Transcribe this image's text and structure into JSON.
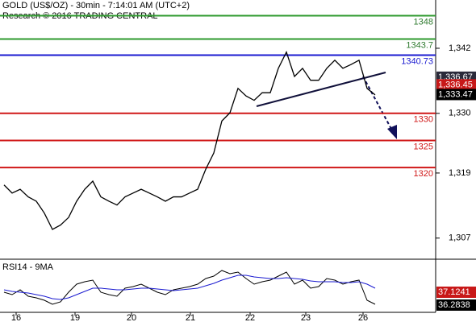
{
  "chart_data": {
    "type": "line",
    "title": "GOLD (US$/OZ) - 30min - 7:14:01 AM (UTC+2)",
    "subtitle": "Research © 2016 TRADING CENTRAL",
    "color": "#000000",
    "x": [
      0,
      1,
      2,
      3,
      4,
      5,
      6,
      7,
      8,
      9,
      10,
      11,
      12,
      13,
      14,
      15,
      16,
      17,
      18,
      19,
      20,
      21,
      22,
      23,
      24,
      25,
      26,
      27,
      28,
      29,
      30,
      31,
      32,
      33,
      34,
      35,
      36,
      37,
      38,
      39,
      40,
      41,
      42,
      43,
      44,
      45,
      46
    ],
    "values": [
      1316.8,
      1315.3,
      1316.0,
      1314.6,
      1313.8,
      1311.6,
      1308.6,
      1309.4,
      1310.8,
      1313.8,
      1316.0,
      1317.5,
      1314.6,
      1313.8,
      1313.1,
      1314.6,
      1315.3,
      1316.0,
      1315.3,
      1314.6,
      1313.8,
      1314.6,
      1314.6,
      1315.3,
      1316.0,
      1319.7,
      1322.7,
      1328.6,
      1330.1,
      1334.6,
      1333.2,
      1332.4,
      1333.8,
      1333.8,
      1338.3,
      1341.3,
      1336.8,
      1338.3,
      1336.1,
      1336.1,
      1338.3,
      1339.8,
      1338.3,
      1339.0,
      1339.8,
      1334.6,
      1333.4
    ],
    "xlim": [
      -0.5,
      53.5
    ],
    "xticks": [
      {
        "value": 1.5,
        "label": "16"
      },
      {
        "value": 8.8,
        "label": "19"
      },
      {
        "value": 15.8,
        "label": "20"
      },
      {
        "value": 23.1,
        "label": "21"
      },
      {
        "value": 30.5,
        "label": "22"
      },
      {
        "value": 37.4,
        "label": "23"
      },
      {
        "value": 44.5,
        "label": "26"
      }
    ],
    "ylim": [
      1303.7,
      1350.9
    ],
    "yticks": [
      {
        "value": 1342,
        "label": "1,342"
      },
      {
        "value": 1330,
        "label": "1,330"
      },
      {
        "value": 1319,
        "label": "1,319"
      },
      {
        "value": 1307,
        "label": "1,307"
      }
    ],
    "levels": [
      {
        "value": 1348,
        "color": "#2e9a2e"
      },
      {
        "value": 1343.7,
        "color": "#2e9a2e"
      },
      {
        "value": 1340.73,
        "color": "#1a1ad0"
      },
      {
        "value": 1330,
        "color": "#d01818"
      },
      {
        "value": 1325,
        "color": "#d01818"
      },
      {
        "value": 1320,
        "color": "#d01818"
      }
    ],
    "price_tags": [
      {
        "value": 1336.67,
        "label": "1,336.67",
        "color": "#2a2a3a"
      },
      {
        "value": 1336.45,
        "label": "1,336.45",
        "color": "#c81818"
      },
      {
        "value": 1333.47,
        "label": "1,333.47",
        "color": "#000000"
      }
    ],
    "rsi_panel": {
      "label": "RSI14 - 9MA",
      "ylim": [
        20,
        80
      ],
      "series": [
        {
          "color": "#000000",
          "values": [
            45,
            42,
            48,
            40,
            38,
            35,
            30,
            33,
            45,
            55,
            58,
            60,
            45,
            42,
            40,
            50,
            52,
            55,
            50,
            45,
            42,
            48,
            50,
            52,
            55,
            62,
            65,
            72,
            68,
            70,
            62,
            55,
            58,
            60,
            65,
            70,
            55,
            60,
            50,
            52,
            62,
            60,
            55,
            58,
            60,
            35,
            30
          ]
        },
        {
          "color": "#1a1ad0",
          "values": [
            48,
            46,
            45,
            44,
            42,
            40,
            37,
            36,
            38,
            42,
            46,
            50,
            50,
            49,
            48,
            48,
            49,
            50,
            50,
            49,
            48,
            47,
            48,
            49,
            50,
            53,
            56,
            60,
            63,
            66,
            66,
            64,
            63,
            62,
            62,
            63,
            62,
            61,
            59,
            58,
            58,
            58,
            57,
            57,
            58,
            55,
            50
          ]
        }
      ],
      "tags": [
        {
          "value": 37.1241,
          "color": "#c81818"
        },
        {
          "value": 36.2838,
          "color": "#000000"
        }
      ]
    }
  }
}
